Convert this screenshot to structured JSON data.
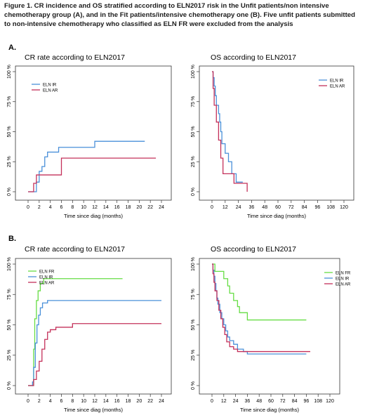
{
  "figure": {
    "caption": "Figure 1. CR incidence and OS stratified according to ELN2017 risk in the Unfit patients/non intensive chemotherapy group (A), and in the Fit patients/intensive chemotherapy one (B).  Five unfit patients submitted to non-intensive chemotherapy who classified as ELN FR were excluded from the analysis",
    "panels": [
      {
        "label": "A."
      },
      {
        "label": "B."
      }
    ]
  },
  "colors": {
    "ELN FR": "#66dd44",
    "ELN IR": "#4a90d9",
    "ELN AR": "#c4305a"
  },
  "chart_data": [
    {
      "type": "line",
      "title": "CR rate according to ELN2017",
      "xlabel": "Time since diag (months)",
      "ylabel": "",
      "xlim": [
        0,
        24
      ],
      "ylim": [
        0,
        100
      ],
      "x_ticks": [
        "0",
        "2",
        "4",
        "6",
        "8",
        "10",
        "12",
        "14",
        "16",
        "18",
        "20",
        "22",
        "24"
      ],
      "y_ticks": [
        "0 %",
        "25 %",
        "50 %",
        "75 %",
        "100 %"
      ],
      "legend": {
        "position": "top-left",
        "entries": [
          "ELN IR",
          "ELN AR"
        ]
      },
      "series": [
        {
          "name": "ELN IR",
          "color": "#4a90d9",
          "points": [
            [
              0,
              0
            ],
            [
              1.5,
              0
            ],
            [
              1.5,
              8
            ],
            [
              2,
              8
            ],
            [
              2,
              17
            ],
            [
              2.5,
              17
            ],
            [
              2.5,
              21
            ],
            [
              3,
              21
            ],
            [
              3,
              29
            ],
            [
              3.5,
              29
            ],
            [
              3.5,
              33
            ],
            [
              5.5,
              33
            ],
            [
              5.5,
              37
            ],
            [
              12,
              37
            ],
            [
              12,
              42
            ],
            [
              21,
              42
            ]
          ]
        },
        {
          "name": "ELN AR",
          "color": "#c4305a",
          "points": [
            [
              0,
              0
            ],
            [
              1,
              0
            ],
            [
              1,
              7
            ],
            [
              1.5,
              7
            ],
            [
              1.5,
              14
            ],
            [
              6,
              14
            ],
            [
              6,
              28
            ],
            [
              23,
              28
            ]
          ]
        }
      ]
    },
    {
      "type": "line",
      "title": "OS according to ELN2017",
      "xlabel": "Time since diag (months)",
      "ylabel": "",
      "xlim": [
        0,
        120
      ],
      "ylim": [
        0,
        100
      ],
      "x_ticks": [
        "0",
        "12",
        "24",
        "36",
        "48",
        "60",
        "72",
        "84",
        "96",
        "108",
        "120"
      ],
      "y_ticks": [
        "0 %",
        "25 %",
        "50 %",
        "75 %",
        "100 %"
      ],
      "legend": {
        "position": "top-right",
        "entries": [
          "ELN IR",
          "ELN AR"
        ]
      },
      "series": [
        {
          "name": "ELN IR",
          "color": "#4a90d9",
          "points": [
            [
              0,
              100
            ],
            [
              1,
              100
            ],
            [
              1,
              95
            ],
            [
              2,
              95
            ],
            [
              2,
              88
            ],
            [
              3,
              88
            ],
            [
              3,
              80
            ],
            [
              4,
              80
            ],
            [
              4,
              72
            ],
            [
              6,
              72
            ],
            [
              6,
              65
            ],
            [
              7,
              65
            ],
            [
              7,
              58
            ],
            [
              8,
              58
            ],
            [
              8,
              50
            ],
            [
              9,
              50
            ],
            [
              9,
              40
            ],
            [
              12,
              40
            ],
            [
              12,
              32
            ],
            [
              15,
              32
            ],
            [
              15,
              25
            ],
            [
              18,
              25
            ],
            [
              18,
              15
            ],
            [
              22,
              15
            ],
            [
              22,
              8
            ],
            [
              28,
              8
            ]
          ]
        },
        {
          "name": "ELN AR",
          "color": "#c4305a",
          "points": [
            [
              0,
              100
            ],
            [
              1,
              100
            ],
            [
              1,
              86
            ],
            [
              2,
              86
            ],
            [
              2,
              72
            ],
            [
              4,
              72
            ],
            [
              4,
              58
            ],
            [
              6,
              58
            ],
            [
              6,
              43
            ],
            [
              8,
              43
            ],
            [
              8,
              28
            ],
            [
              10,
              28
            ],
            [
              10,
              15
            ],
            [
              20,
              15
            ],
            [
              20,
              7
            ],
            [
              32,
              7
            ],
            [
              32,
              0
            ]
          ]
        }
      ]
    },
    {
      "type": "line",
      "title": "CR rate according to ELN2017",
      "xlabel": "Time since diag (months)",
      "ylabel": "",
      "xlim": [
        0,
        24
      ],
      "ylim": [
        0,
        100
      ],
      "x_ticks": [
        "0",
        "2",
        "4",
        "6",
        "8",
        "10",
        "12",
        "14",
        "16",
        "18",
        "20",
        "22",
        "24"
      ],
      "y_ticks": [
        "0 %",
        "25 %",
        "50 %",
        "75 %",
        "100 %"
      ],
      "legend": {
        "position": "top-left",
        "entries": [
          "ELN FR",
          "ELN IR",
          "ELN AR"
        ]
      },
      "series": [
        {
          "name": "ELN FR",
          "color": "#66dd44",
          "points": [
            [
              0,
              0
            ],
            [
              1,
              0
            ],
            [
              1,
              30
            ],
            [
              1.2,
              30
            ],
            [
              1.2,
              55
            ],
            [
              1.5,
              55
            ],
            [
              1.5,
              70
            ],
            [
              1.8,
              70
            ],
            [
              1.8,
              78
            ],
            [
              2.2,
              78
            ],
            [
              2.2,
              84
            ],
            [
              2.8,
              84
            ],
            [
              2.8,
              88
            ],
            [
              17,
              88
            ]
          ]
        },
        {
          "name": "ELN IR",
          "color": "#4a90d9",
          "points": [
            [
              0,
              0
            ],
            [
              0.8,
              0
            ],
            [
              0.8,
              3
            ],
            [
              1,
              3
            ],
            [
              1,
              15
            ],
            [
              1.3,
              15
            ],
            [
              1.3,
              35
            ],
            [
              1.6,
              35
            ],
            [
              1.6,
              50
            ],
            [
              1.9,
              50
            ],
            [
              1.9,
              58
            ],
            [
              2.2,
              58
            ],
            [
              2.2,
              64
            ],
            [
              2.6,
              64
            ],
            [
              2.6,
              68
            ],
            [
              3.5,
              68
            ],
            [
              3.5,
              70
            ],
            [
              24,
              70
            ]
          ]
        },
        {
          "name": "ELN AR",
          "color": "#c4305a",
          "points": [
            [
              0,
              0
            ],
            [
              1,
              0
            ],
            [
              1,
              5
            ],
            [
              1.5,
              5
            ],
            [
              1.5,
              12
            ],
            [
              2,
              12
            ],
            [
              2,
              20
            ],
            [
              2.5,
              20
            ],
            [
              2.5,
              30
            ],
            [
              3,
              30
            ],
            [
              3,
              38
            ],
            [
              3.5,
              38
            ],
            [
              3.5,
              44
            ],
            [
              4,
              44
            ],
            [
              4,
              46
            ],
            [
              5,
              46
            ],
            [
              5,
              48
            ],
            [
              8,
              48
            ],
            [
              8,
              51
            ],
            [
              24,
              51
            ]
          ]
        }
      ]
    },
    {
      "type": "line",
      "title": "OS according to ELN2017",
      "xlabel": "Time since diag (months)",
      "ylabel": "",
      "xlim": [
        0,
        120
      ],
      "ylim": [
        0,
        100
      ],
      "x_ticks": [
        "0",
        "12",
        "24",
        "36",
        "48",
        "60",
        "72",
        "84",
        "96",
        "108",
        "120"
      ],
      "y_ticks": [
        "0 %",
        "25 %",
        "50 %",
        "75 %",
        "100 %"
      ],
      "legend": {
        "position": "top-right",
        "entries": [
          "ELN FR",
          "ELN IR",
          "ELN AR"
        ]
      },
      "series": [
        {
          "name": "ELN FR",
          "color": "#66dd44",
          "points": [
            [
              0,
              100
            ],
            [
              3,
              100
            ],
            [
              3,
              94
            ],
            [
              12,
              94
            ],
            [
              12,
              88
            ],
            [
              16,
              88
            ],
            [
              16,
              82
            ],
            [
              18,
              82
            ],
            [
              18,
              76
            ],
            [
              22,
              76
            ],
            [
              22,
              70
            ],
            [
              26,
              70
            ],
            [
              26,
              65
            ],
            [
              28,
              65
            ],
            [
              28,
              60
            ],
            [
              36,
              60
            ],
            [
              36,
              54
            ],
            [
              96,
              54
            ]
          ]
        },
        {
          "name": "ELN IR",
          "color": "#4a90d9",
          "points": [
            [
              0,
              100
            ],
            [
              1,
              100
            ],
            [
              1,
              95
            ],
            [
              2,
              95
            ],
            [
              2,
              90
            ],
            [
              3,
              90
            ],
            [
              3,
              84
            ],
            [
              4,
              84
            ],
            [
              4,
              78
            ],
            [
              5,
              78
            ],
            [
              5,
              72
            ],
            [
              6,
              72
            ],
            [
              6,
              67
            ],
            [
              8,
              67
            ],
            [
              8,
              60
            ],
            [
              10,
              60
            ],
            [
              10,
              55
            ],
            [
              12,
              55
            ],
            [
              12,
              50
            ],
            [
              14,
              50
            ],
            [
              14,
              45
            ],
            [
              16,
              45
            ],
            [
              16,
              40
            ],
            [
              18,
              40
            ],
            [
              18,
              37
            ],
            [
              22,
              37
            ],
            [
              22,
              34
            ],
            [
              26,
              34
            ],
            [
              26,
              30
            ],
            [
              32,
              30
            ],
            [
              32,
              28
            ],
            [
              36,
              28
            ],
            [
              36,
              26
            ],
            [
              96,
              26
            ]
          ]
        },
        {
          "name": "ELN AR",
          "color": "#c4305a",
          "points": [
            [
              0,
              100
            ],
            [
              1,
              100
            ],
            [
              1,
              92
            ],
            [
              2,
              92
            ],
            [
              2,
              85
            ],
            [
              3,
              85
            ],
            [
              3,
              78
            ],
            [
              5,
              78
            ],
            [
              5,
              70
            ],
            [
              7,
              70
            ],
            [
              7,
              62
            ],
            [
              9,
              62
            ],
            [
              9,
              55
            ],
            [
              11,
              55
            ],
            [
              11,
              48
            ],
            [
              13,
              48
            ],
            [
              13,
              42
            ],
            [
              15,
              42
            ],
            [
              15,
              36
            ],
            [
              18,
              36
            ],
            [
              18,
              32
            ],
            [
              22,
              32
            ],
            [
              22,
              30
            ],
            [
              26,
              30
            ],
            [
              26,
              28
            ],
            [
              100,
              28
            ]
          ]
        }
      ]
    }
  ]
}
